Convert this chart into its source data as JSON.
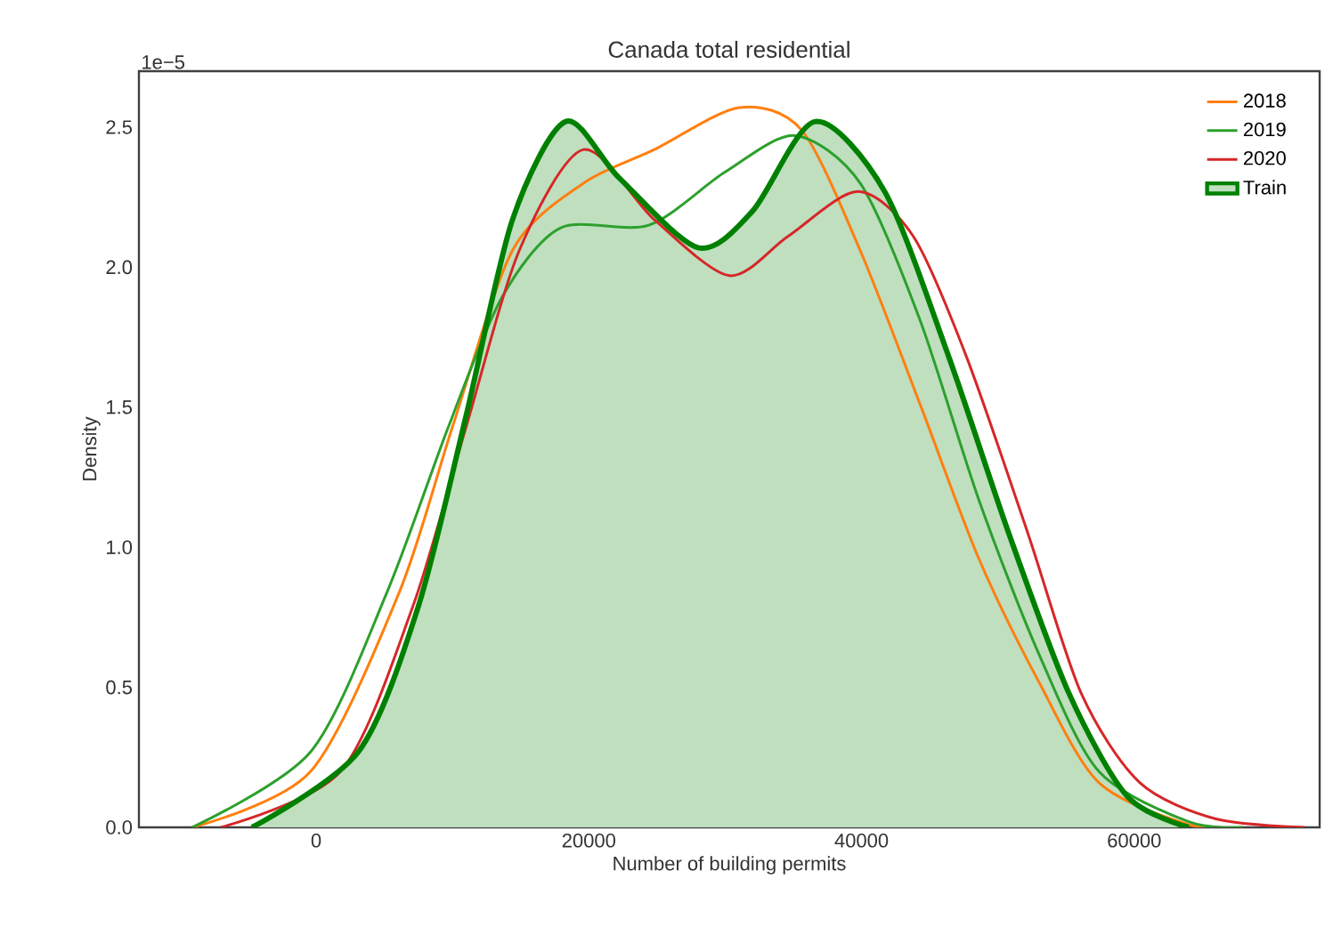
{
  "chart_data": {
    "type": "line",
    "title": "Canada total residential",
    "xlabel": "Number of building permits",
    "ylabel": "Density",
    "annotations": [
      "1e−5"
    ],
    "xlim": [
      -13000,
      73600
    ],
    "ylim": [
      0,
      2.7
    ],
    "xticks": [
      0,
      20000,
      40000,
      60000
    ],
    "yticks": [
      {
        "value": 0,
        "label": "0.0"
      },
      {
        "value": 0.5,
        "label": "0.5"
      },
      {
        "value": 1,
        "label": "1.0"
      },
      {
        "value": 1.5,
        "label": "1.5"
      },
      {
        "value": 2,
        "label": "2.0"
      },
      {
        "value": 2.5,
        "label": "2.5"
      }
    ],
    "grid": false,
    "legend": "top right",
    "marker": "none",
    "line_style": "solid",
    "series": [
      {
        "name": "2018",
        "color": "#ff7f0e",
        "x": [
          -9100,
          -400,
          6100,
          10000,
          14400,
          19600,
          24800,
          31000,
          35600,
          39900,
          44300,
          48600,
          53000,
          57400,
          64000,
          68000
        ],
        "values": [
          0,
          0.2,
          0.84,
          1.43,
          2.06,
          2.3,
          2.42,
          2.57,
          2.49,
          2.06,
          1.51,
          0.96,
          0.52,
          0.16,
          0.01,
          0
        ]
      },
      {
        "name": "2019",
        "color": "#2ca02c",
        "x": [
          -9100,
          -400,
          5200,
          9700,
          13600,
          17900,
          24400,
          30000,
          35100,
          39900,
          44300,
          48600,
          53000,
          57400,
          64000,
          68000
        ],
        "values": [
          0,
          0.27,
          0.84,
          1.43,
          1.89,
          2.14,
          2.15,
          2.34,
          2.47,
          2.3,
          1.81,
          1.17,
          0.62,
          0.2,
          0.02,
          0
        ]
      },
      {
        "name": "2020",
        "color": "#d62728",
        "x": [
          -7000,
          1800,
          7100,
          11000,
          14900,
          19600,
          24800,
          30300,
          34600,
          39700,
          43800,
          47700,
          52200,
          56100,
          60400,
          66000,
          72500
        ],
        "values": [
          0,
          0.2,
          0.79,
          1.43,
          2.06,
          2.42,
          2.17,
          1.97,
          2.11,
          2.27,
          2.11,
          1.68,
          1.05,
          0.48,
          0.16,
          0.03,
          0
        ]
      },
      {
        "name": "Train",
        "type": "area",
        "color": "#008000",
        "x": [
          -4700,
          3100,
          7500,
          11000,
          14400,
          18300,
          22200,
          28000,
          32000,
          36600,
          41700,
          46400,
          50800,
          55200,
          59500,
          64000
        ],
        "values": [
          0,
          0.27,
          0.79,
          1.47,
          2.17,
          2.52,
          2.32,
          2.07,
          2.2,
          2.52,
          2.27,
          1.68,
          1.05,
          0.48,
          0.11,
          0
        ]
      }
    ]
  }
}
